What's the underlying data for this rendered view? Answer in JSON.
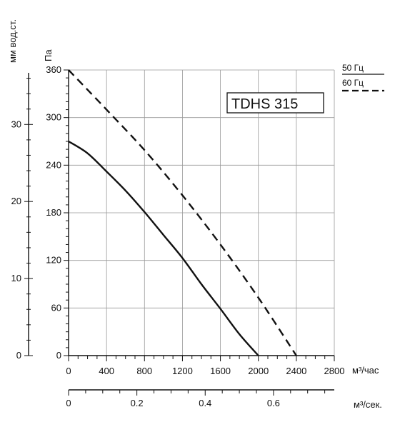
{
  "chart_data": {
    "type": "line",
    "title": "TDHS 315",
    "xlabel": "м³/час",
    "x2label": "м³/сек.",
    "ylabel": "Па",
    "y2label": "мм вод.ст.",
    "xlim": [
      0,
      2800
    ],
    "ylim": [
      0,
      360
    ],
    "xticks": [
      0,
      400,
      800,
      1200,
      1600,
      2000,
      2400,
      2800
    ],
    "yticks": [
      0,
      60,
      120,
      180,
      240,
      300,
      360
    ],
    "x2ticks": [
      0,
      0.2,
      0.4,
      0.6
    ],
    "x2lim": [
      0,
      0.778
    ],
    "y2ticks": [
      0,
      10,
      20,
      30
    ],
    "y2lim": [
      0,
      36.7
    ],
    "grid": true,
    "legend_position": "top-right",
    "series": [
      {
        "name": "50 Гц",
        "style": "solid",
        "color": "#111111",
        "points": [
          [
            0,
            270
          ],
          [
            200,
            255
          ],
          [
            400,
            232
          ],
          [
            600,
            208
          ],
          [
            800,
            181
          ],
          [
            1000,
            152
          ],
          [
            1200,
            123
          ],
          [
            1400,
            90
          ],
          [
            1600,
            59
          ],
          [
            1800,
            27
          ],
          [
            2000,
            0
          ]
        ]
      },
      {
        "name": "60 Гц",
        "style": "dashed",
        "color": "#111111",
        "points": [
          [
            0,
            360
          ],
          [
            400,
            310
          ],
          [
            800,
            259
          ],
          [
            1200,
            202
          ],
          [
            1600,
            140
          ],
          [
            2000,
            73
          ],
          [
            2400,
            0
          ]
        ]
      }
    ]
  }
}
